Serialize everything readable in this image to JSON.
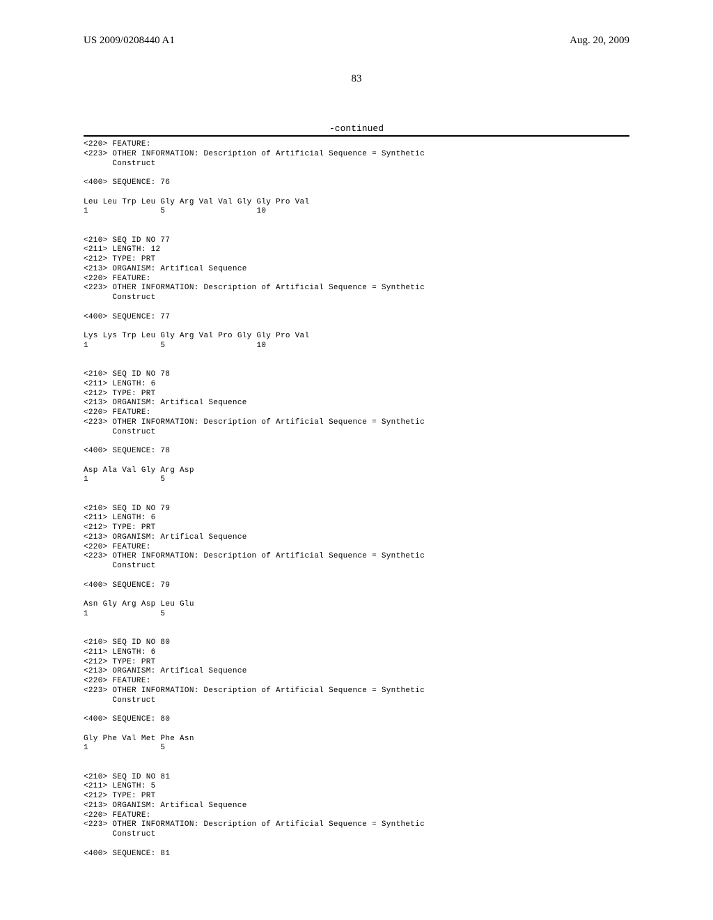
{
  "header": {
    "left": "US 2009/0208440 A1",
    "right": "Aug. 20, 2009"
  },
  "page_number": "83",
  "continued_label": "-continued",
  "content": "<220> FEATURE:\n<223> OTHER INFORMATION: Description of Artificial Sequence = Synthetic\n      Construct\n\n<400> SEQUENCE: 76\n\nLeu Leu Trp Leu Gly Arg Val Val Gly Gly Pro Val\n1               5                   10\n\n\n<210> SEQ ID NO 77\n<211> LENGTH: 12\n<212> TYPE: PRT\n<213> ORGANISM: Artifical Sequence\n<220> FEATURE:\n<223> OTHER INFORMATION: Description of Artificial Sequence = Synthetic\n      Construct\n\n<400> SEQUENCE: 77\n\nLys Lys Trp Leu Gly Arg Val Pro Gly Gly Pro Val\n1               5                   10\n\n\n<210> SEQ ID NO 78\n<211> LENGTH: 6\n<212> TYPE: PRT\n<213> ORGANISM: Artifical Sequence\n<220> FEATURE:\n<223> OTHER INFORMATION: Description of Artificial Sequence = Synthetic\n      Construct\n\n<400> SEQUENCE: 78\n\nAsp Ala Val Gly Arg Asp\n1               5\n\n\n<210> SEQ ID NO 79\n<211> LENGTH: 6\n<212> TYPE: PRT\n<213> ORGANISM: Artifical Sequence\n<220> FEATURE:\n<223> OTHER INFORMATION: Description of Artificial Sequence = Synthetic\n      Construct\n\n<400> SEQUENCE: 79\n\nAsn Gly Arg Asp Leu Glu\n1               5\n\n\n<210> SEQ ID NO 80\n<211> LENGTH: 6\n<212> TYPE: PRT\n<213> ORGANISM: Artifical Sequence\n<220> FEATURE:\n<223> OTHER INFORMATION: Description of Artificial Sequence = Synthetic\n      Construct\n\n<400> SEQUENCE: 80\n\nGly Phe Val Met Phe Asn\n1               5\n\n\n<210> SEQ ID NO 81\n<211> LENGTH: 5\n<212> TYPE: PRT\n<213> ORGANISM: Artifical Sequence\n<220> FEATURE:\n<223> OTHER INFORMATION: Description of Artificial Sequence = Synthetic\n      Construct\n\n<400> SEQUENCE: 81"
}
